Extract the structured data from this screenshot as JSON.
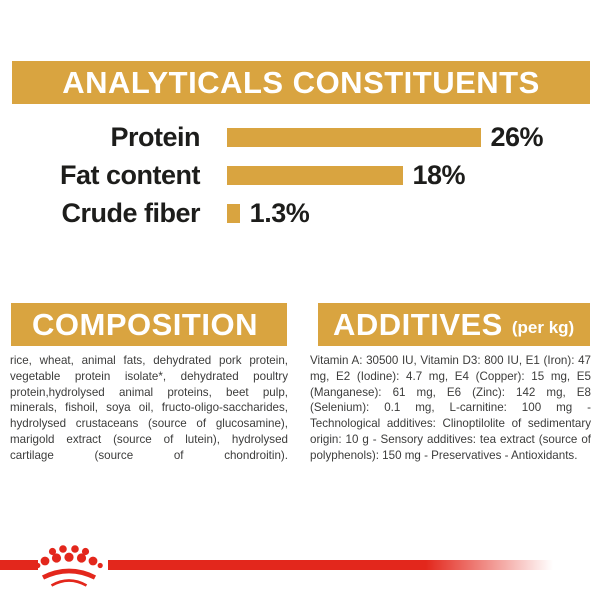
{
  "colors": {
    "gold": "#D9A440",
    "red": "#E3271C",
    "heading_text": "#ffffff",
    "chart_text": "#1d1d1b",
    "body_text": "#3c3c3b"
  },
  "header": {
    "title": "ANALYTICALS CONSTITUENTS"
  },
  "chart_data": {
    "type": "bar",
    "orientation": "horizontal",
    "categories": [
      "Protein",
      "Fat content",
      "Crude fiber"
    ],
    "values": [
      26,
      18,
      1.3
    ],
    "value_labels": [
      "26%",
      "18%",
      "1.3%"
    ],
    "unit": "%",
    "xlim": [
      0,
      26
    ],
    "bar_color": "#D9A440",
    "grid": false,
    "legend": false
  },
  "composition": {
    "title": "COMPOSITION",
    "body": "rice, wheat, animal fats, dehydrated pork protein, vegetable protein isolate*, dehydrated poultry protein,hydrolysed animal proteins, beet pulp, minerals, fishoil, soya oil, fructo-oligo-saccharides, hydrolysed crustaceans (source of glucosamine), marigold extract (source of lutein), hydrolysed cartilage (source of chondroitin)."
  },
  "additives": {
    "title": "ADDITIVES",
    "suffix": "(per kg)",
    "body": "Vitamin A: 30500 IU, Vitamin D3: 800 IU, E1 (Iron): 47 mg, E2 (Iodine): 4.7 mg, E4 (Copper): 15 mg, E5 (Manganese): 61 mg, E6 (Zinc): 142 mg, E8 (Selenium): 0.1 mg, L-carnitine: 100 mg - Technological additives: Clinoptilolite of sedimentary origin: 10 g - Sensory additives: tea extract (source of polyphenols): 150 mg - Preservatives - Antioxidants.",
    "icon": "crown-icon"
  },
  "footer": {
    "logo": "royal-canin-crown-icon"
  }
}
